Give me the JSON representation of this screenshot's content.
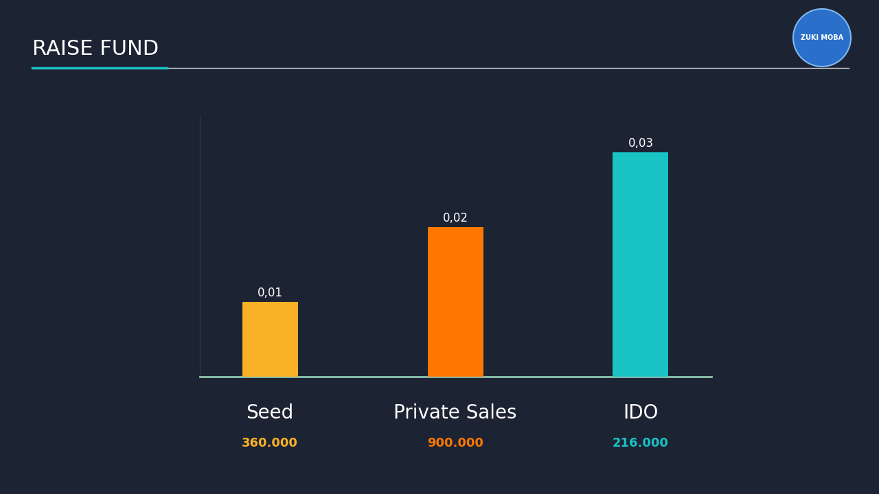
{
  "chart_data": {
    "type": "bar",
    "title": "RAISE FUND",
    "logo": "ZUKI MOBA",
    "categories": [
      "Seed",
      "Private Sales",
      "IDO"
    ],
    "values": [
      0.01,
      0.02,
      0.03
    ],
    "value_labels": [
      "0,01",
      "0,02",
      "0,03"
    ],
    "raised_labels": [
      "360.000",
      "900.000",
      "216.000"
    ],
    "colors": [
      "#fbb125",
      "#ff7700",
      "#1ac3c4"
    ],
    "ylim": [
      0,
      0.035
    ],
    "yticks": [],
    "grid": false,
    "data_labels": true,
    "tick_labels": "x"
  }
}
